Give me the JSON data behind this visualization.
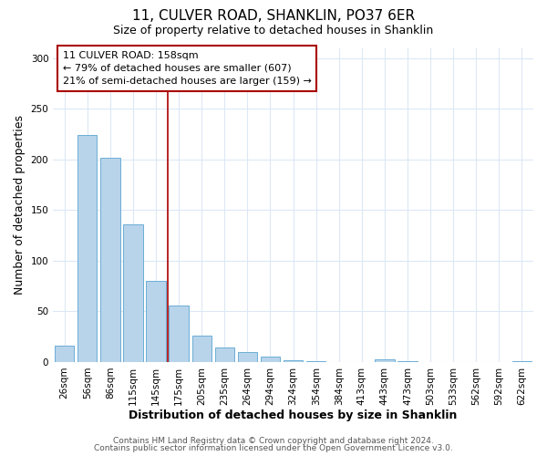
{
  "title": "11, CULVER ROAD, SHANKLIN, PO37 6ER",
  "subtitle": "Size of property relative to detached houses in Shanklin",
  "xlabel": "Distribution of detached houses by size in Shanklin",
  "ylabel": "Number of detached properties",
  "bar_labels": [
    "26sqm",
    "56sqm",
    "86sqm",
    "115sqm",
    "145sqm",
    "175sqm",
    "205sqm",
    "235sqm",
    "264sqm",
    "294sqm",
    "324sqm",
    "354sqm",
    "384sqm",
    "413sqm",
    "443sqm",
    "473sqm",
    "503sqm",
    "533sqm",
    "562sqm",
    "592sqm",
    "622sqm"
  ],
  "bar_values": [
    16,
    224,
    202,
    136,
    80,
    56,
    26,
    14,
    10,
    5,
    2,
    1,
    0,
    0,
    3,
    1,
    0,
    0,
    0,
    0,
    1
  ],
  "bar_color": "#b8d4ea",
  "bar_edgecolor": "#6baed6",
  "ylim": [
    0,
    310
  ],
  "yticks": [
    0,
    50,
    100,
    150,
    200,
    250,
    300
  ],
  "vline_x_index": 4.5,
  "vline_color": "#aa0000",
  "annotation_title": "11 CULVER ROAD: 158sqm",
  "annotation_line1": "← 79% of detached houses are smaller (607)",
  "annotation_line2": "21% of semi-detached houses are larger (159) →",
  "annotation_box_edgecolor": "#aa0000",
  "footer_line1": "Contains HM Land Registry data © Crown copyright and database right 2024.",
  "footer_line2": "Contains public sector information licensed under the Open Government Licence v3.0.",
  "plot_bg_color": "#ffffff",
  "fig_bg_color": "#ffffff",
  "grid_color": "#dce8f5",
  "title_fontsize": 11,
  "subtitle_fontsize": 9,
  "axis_label_fontsize": 9,
  "tick_fontsize": 7.5,
  "footer_fontsize": 6.5
}
